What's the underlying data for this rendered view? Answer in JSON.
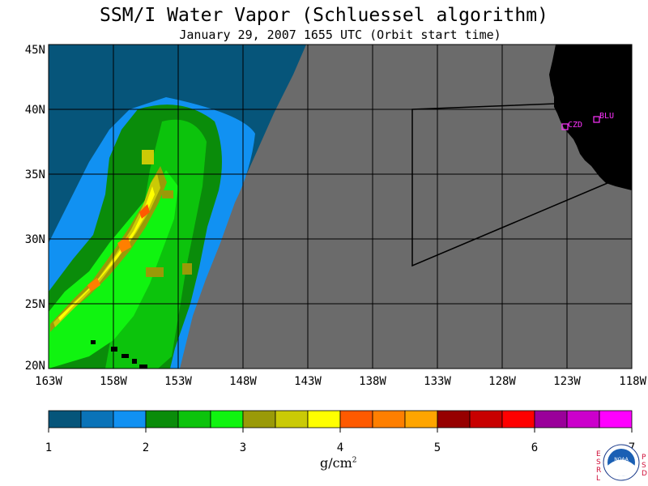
{
  "title": "SSM/I Water Vapor (Schluessel algorithm)",
  "subtitle": "January 29, 2007  1655 UTC  (Orbit start time)",
  "map": {
    "lat_labels": [
      "45N",
      "40N",
      "35N",
      "30N",
      "25N",
      "20N"
    ],
    "lon_labels": [
      "163W",
      "158W",
      "153W",
      "148W",
      "143W",
      "138W",
      "133W",
      "128W",
      "123W",
      "118W"
    ],
    "colors": {
      "no_data": "#6b6b6b",
      "land": "#000000",
      "grid": "#000000",
      "marker": "#ff33ff"
    },
    "stations": [
      {
        "id": "CZD"
      },
      {
        "id": "BLU"
      }
    ]
  },
  "colorbar": {
    "colors": [
      "#06557a",
      "#0a73b8",
      "#1191f2",
      "#0a8c0a",
      "#0cc30c",
      "#10f410",
      "#9a9a08",
      "#caca06",
      "#ffff00",
      "#ff5a00",
      "#ff7f00",
      "#ffa500",
      "#960000",
      "#c80000",
      "#ff0000",
      "#9a009a",
      "#cc00cc",
      "#ff00ff"
    ],
    "tick_labels": [
      "1",
      "2",
      "3",
      "4",
      "5",
      "6",
      "7"
    ],
    "units": "g/cm",
    "units_sup": "2"
  },
  "logo": {
    "left_text": "ESRL",
    "right_text": "PSD",
    "center_text": "NOAA"
  }
}
